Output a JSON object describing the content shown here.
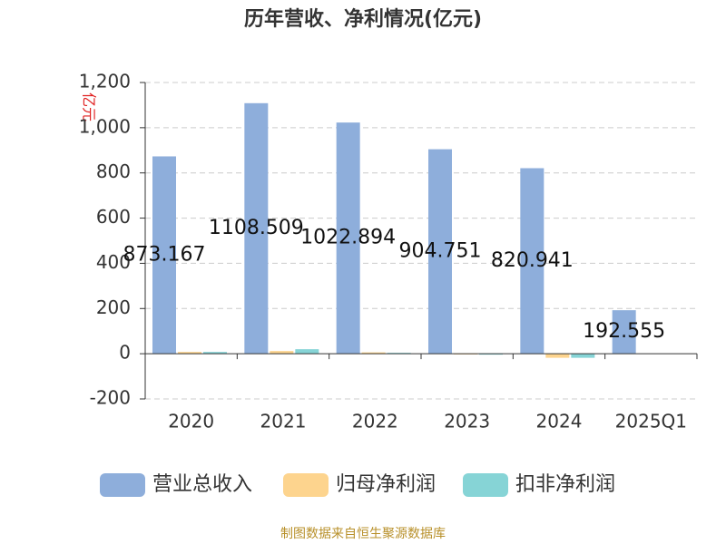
{
  "chart_data": {
    "type": "bar",
    "title": "历年营收、净利情况(亿元)",
    "y_label": "亿元",
    "source": "制图数据来自恒生聚源数据库",
    "categories": [
      "2020",
      "2021",
      "2022",
      "2023",
      "2024",
      "2025Q1"
    ],
    "series": [
      {
        "name": "营业总收入",
        "color": "#8eaedb",
        "values": [
          873.167,
          1108.509,
          1022.894,
          904.751,
          820.941,
          192.555
        ],
        "show_labels": true
      },
      {
        "name": "归母净利润",
        "color": "#fdd48e",
        "values": [
          8,
          12,
          6,
          -3,
          -18,
          null
        ]
      },
      {
        "name": "扣非净利润",
        "color": "#86d4d6",
        "values": [
          8,
          20,
          4,
          -4,
          -18,
          null
        ]
      }
    ],
    "ylim": [
      -200,
      1200
    ],
    "yticks": [
      -200,
      0,
      200,
      400,
      600,
      800,
      {
        "value": 1000,
        "label": "1,000"
      },
      {
        "value": 1200,
        "label": "1,200"
      }
    ],
    "grid": true,
    "legend": "bottom"
  }
}
